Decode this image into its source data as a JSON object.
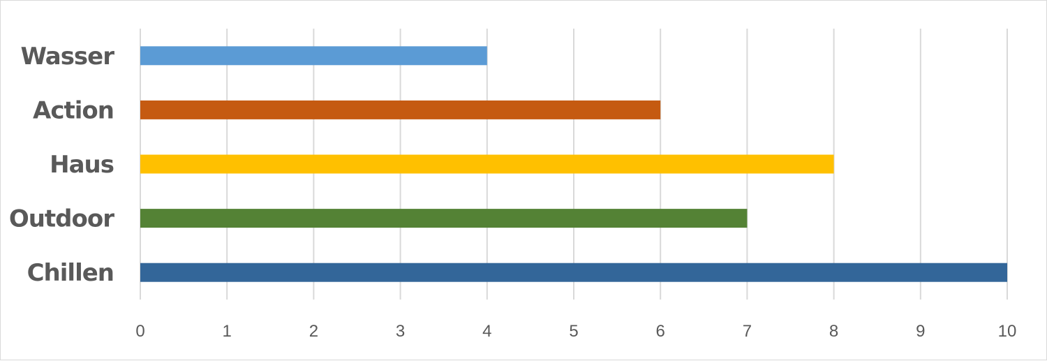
{
  "chart_data": {
    "type": "bar",
    "orientation": "horizontal",
    "categories": [
      "Wasser",
      "Action",
      "Haus",
      "Outdoor",
      "Chillen"
    ],
    "values": [
      4,
      6,
      8,
      7,
      10
    ],
    "colors": [
      "#5b9bd5",
      "#c55a11",
      "#ffc000",
      "#548235",
      "#336699"
    ],
    "xticks": [
      "0",
      "1",
      "2",
      "3",
      "4",
      "5",
      "6",
      "7",
      "8",
      "9",
      "10"
    ],
    "xlim": [
      0,
      10
    ],
    "title": "",
    "xlabel": "",
    "ylabel": "",
    "grid": true,
    "legend": "none"
  }
}
